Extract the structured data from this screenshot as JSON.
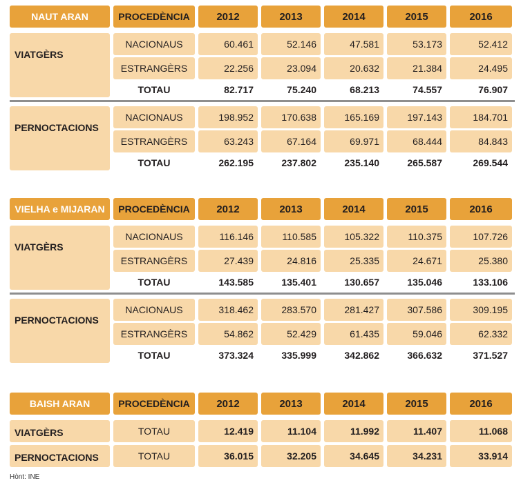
{
  "colors": {
    "header_fill": "#E8A23A",
    "cell_fill": "#F8D8A9",
    "separator": "#8E8E8E",
    "title_text": "#FFFFFF",
    "text": "#221E1F"
  },
  "sections": [
    {
      "title": "NAUT ARAN",
      "procedencia_header": "PROCEDÈNCIA",
      "years": [
        "2012",
        "2013",
        "2014",
        "2015",
        "2016"
      ],
      "groups": [
        {
          "label": "VIATGÈRS",
          "rows": [
            {
              "procedencia": "NACIONAUS",
              "values": [
                "60.461",
                "52.146",
                "47.581",
                "53.173",
                "52.412"
              ]
            },
            {
              "procedencia": "ESTRANGÈRS",
              "values": [
                "22.256",
                "23.094",
                "20.632",
                "21.384",
                "24.495"
              ]
            },
            {
              "procedencia": "TOTAU",
              "values": [
                "82.717",
                "75.240",
                "68.213",
                "74.557",
                "76.907"
              ]
            }
          ]
        },
        {
          "label": "PERNOCTACIONS",
          "rows": [
            {
              "procedencia": "NACIONAUS",
              "values": [
                "198.952",
                "170.638",
                "165.169",
                "197.143",
                "184.701"
              ]
            },
            {
              "procedencia": "ESTRANGÈRS",
              "values": [
                "63.243",
                "67.164",
                "69.971",
                "68.444",
                "84.843"
              ]
            },
            {
              "procedencia": "TOTAU",
              "values": [
                "262.195",
                "237.802",
                "235.140",
                "265.587",
                "269.544"
              ]
            }
          ]
        }
      ]
    },
    {
      "title": "VIELHA e MIJARAN",
      "procedencia_header": "PROCEDÈNCIA",
      "years": [
        "2012",
        "2013",
        "2014",
        "2015",
        "2016"
      ],
      "groups": [
        {
          "label": "VIATGÈRS",
          "rows": [
            {
              "procedencia": "NACIONAUS",
              "values": [
                "116.146",
                "110.585",
                "105.322",
                "110.375",
                "107.726"
              ]
            },
            {
              "procedencia": "ESTRANGÈRS",
              "values": [
                "27.439",
                "24.816",
                "25.335",
                "24.671",
                "25.380"
              ]
            },
            {
              "procedencia": "TOTAU",
              "values": [
                "143.585",
                "135.401",
                "130.657",
                "135.046",
                "133.106"
              ]
            }
          ]
        },
        {
          "label": "PERNOCTACIONS",
          "rows": [
            {
              "procedencia": "NACIONAUS",
              "values": [
                "318.462",
                "283.570",
                "281.427",
                "307.586",
                "309.195"
              ]
            },
            {
              "procedencia": "ESTRANGÈRS",
              "values": [
                "54.862",
                "52.429",
                "61.435",
                "59.046",
                "62.332"
              ]
            },
            {
              "procedencia": "TOTAU",
              "values": [
                "373.324",
                "335.999",
                "342.862",
                "366.632",
                "371.527"
              ]
            }
          ]
        }
      ]
    },
    {
      "title": "BAISH ARAN",
      "procedencia_header": "PROCEDÈNCIA",
      "years": [
        "2012",
        "2013",
        "2014",
        "2015",
        "2016"
      ],
      "groups": [
        {
          "label": "VIATGÈRS",
          "rows": [
            {
              "procedencia": "TOTAU",
              "values": [
                "12.419",
                "11.104",
                "11.992",
                "11.407",
                "11.068"
              ]
            }
          ]
        },
        {
          "label": "PERNOCTACIONS",
          "rows": [
            {
              "procedencia": "TOTAU",
              "values": [
                "36.015",
                "32.205",
                "34.645",
                "34.231",
                "33.914"
              ]
            }
          ]
        }
      ]
    }
  ],
  "source_note": "Hònt: INE"
}
